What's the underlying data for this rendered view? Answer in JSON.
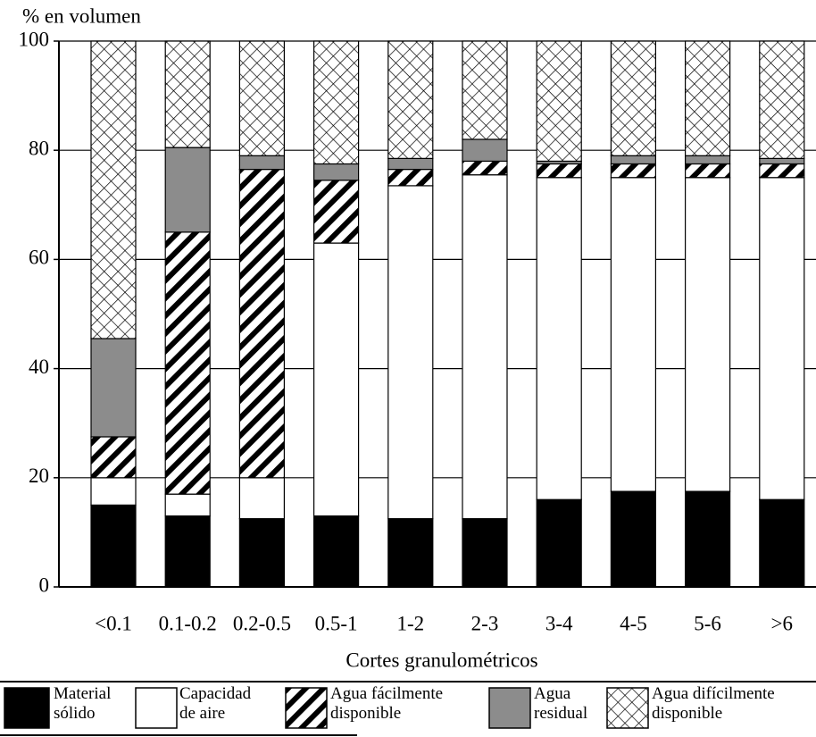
{
  "chart_data": {
    "type": "stacked-bar",
    "y_label": "% en volumen",
    "x_label": "Cortes granulométricos",
    "categories": [
      "<0.1",
      "0.1-0.2",
      "0.2-0.5",
      "0.5-1",
      "1-2",
      "2-3",
      "3-4",
      "4-5",
      "5-6",
      ">6"
    ],
    "series": [
      {
        "name": "Material sólido",
        "color": "#000000",
        "pattern": "solid",
        "values": [
          15,
          13,
          12.5,
          13,
          12.5,
          12.5,
          16,
          17.5,
          17.5,
          16
        ]
      },
      {
        "name": "Capacidad de aire",
        "color": "#ffffff",
        "pattern": "solid",
        "values": [
          5,
          4,
          7.5,
          50,
          61,
          63,
          59,
          57.5,
          57.5,
          59
        ]
      },
      {
        "name": "Agua fácilmente disponible",
        "color": "#000000",
        "pattern": "hatch",
        "values": [
          7.5,
          48,
          56.5,
          11.5,
          3,
          2.5,
          2.5,
          2.5,
          2.5,
          2.5
        ]
      },
      {
        "name": "Agua residual",
        "color": "#8c8c8c",
        "pattern": "solid",
        "values": [
          18,
          15.5,
          2.5,
          3,
          2,
          4,
          0.5,
          1.5,
          1.5,
          1
        ]
      },
      {
        "name": "Agua difícilmente disponible",
        "color": "#000000",
        "pattern": "crosshatch",
        "values": [
          54.5,
          19.5,
          21,
          22.5,
          21.5,
          18,
          22,
          21,
          21,
          21.5
        ]
      }
    ],
    "ylim": [
      0,
      100
    ],
    "yticks": [
      0,
      20,
      40,
      60,
      80,
      100
    ],
    "grid": true
  }
}
